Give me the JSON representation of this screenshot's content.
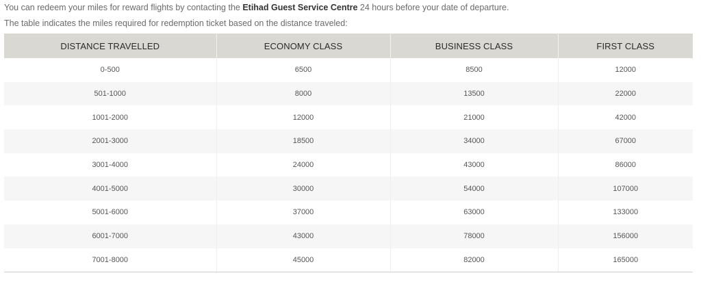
{
  "intro": {
    "line1_before": "You can redeem your miles for reward flights by contacting the ",
    "line1_bold": "Etihad Guest Service Centre",
    "line1_after": " 24 hours before your date of departure.",
    "line2": "The table indicates the miles required for redemption ticket based on the distance traveled:"
  },
  "table": {
    "headers": [
      "DISTANCE TRAVELLED",
      "ECONOMY CLASS",
      "BUSINESS CLASS",
      "FIRST CLASS"
    ],
    "rows": [
      [
        "0-500",
        "6500",
        "8500",
        "12000"
      ],
      [
        "501-1000",
        "8000",
        "13500",
        "22000"
      ],
      [
        "1001-2000",
        "12000",
        "21000",
        "42000"
      ],
      [
        "2001-3000",
        "18500",
        "34000",
        "67000"
      ],
      [
        "3001-4000",
        "24000",
        "43000",
        "86000"
      ],
      [
        "4001-5000",
        "30000",
        "54000",
        "107000"
      ],
      [
        "5001-6000",
        "37000",
        "63000",
        "133000"
      ],
      [
        "6001-7000",
        "43000",
        "78000",
        "156000"
      ],
      [
        "7001-8000",
        "45000",
        "82000",
        "165000"
      ]
    ]
  }
}
